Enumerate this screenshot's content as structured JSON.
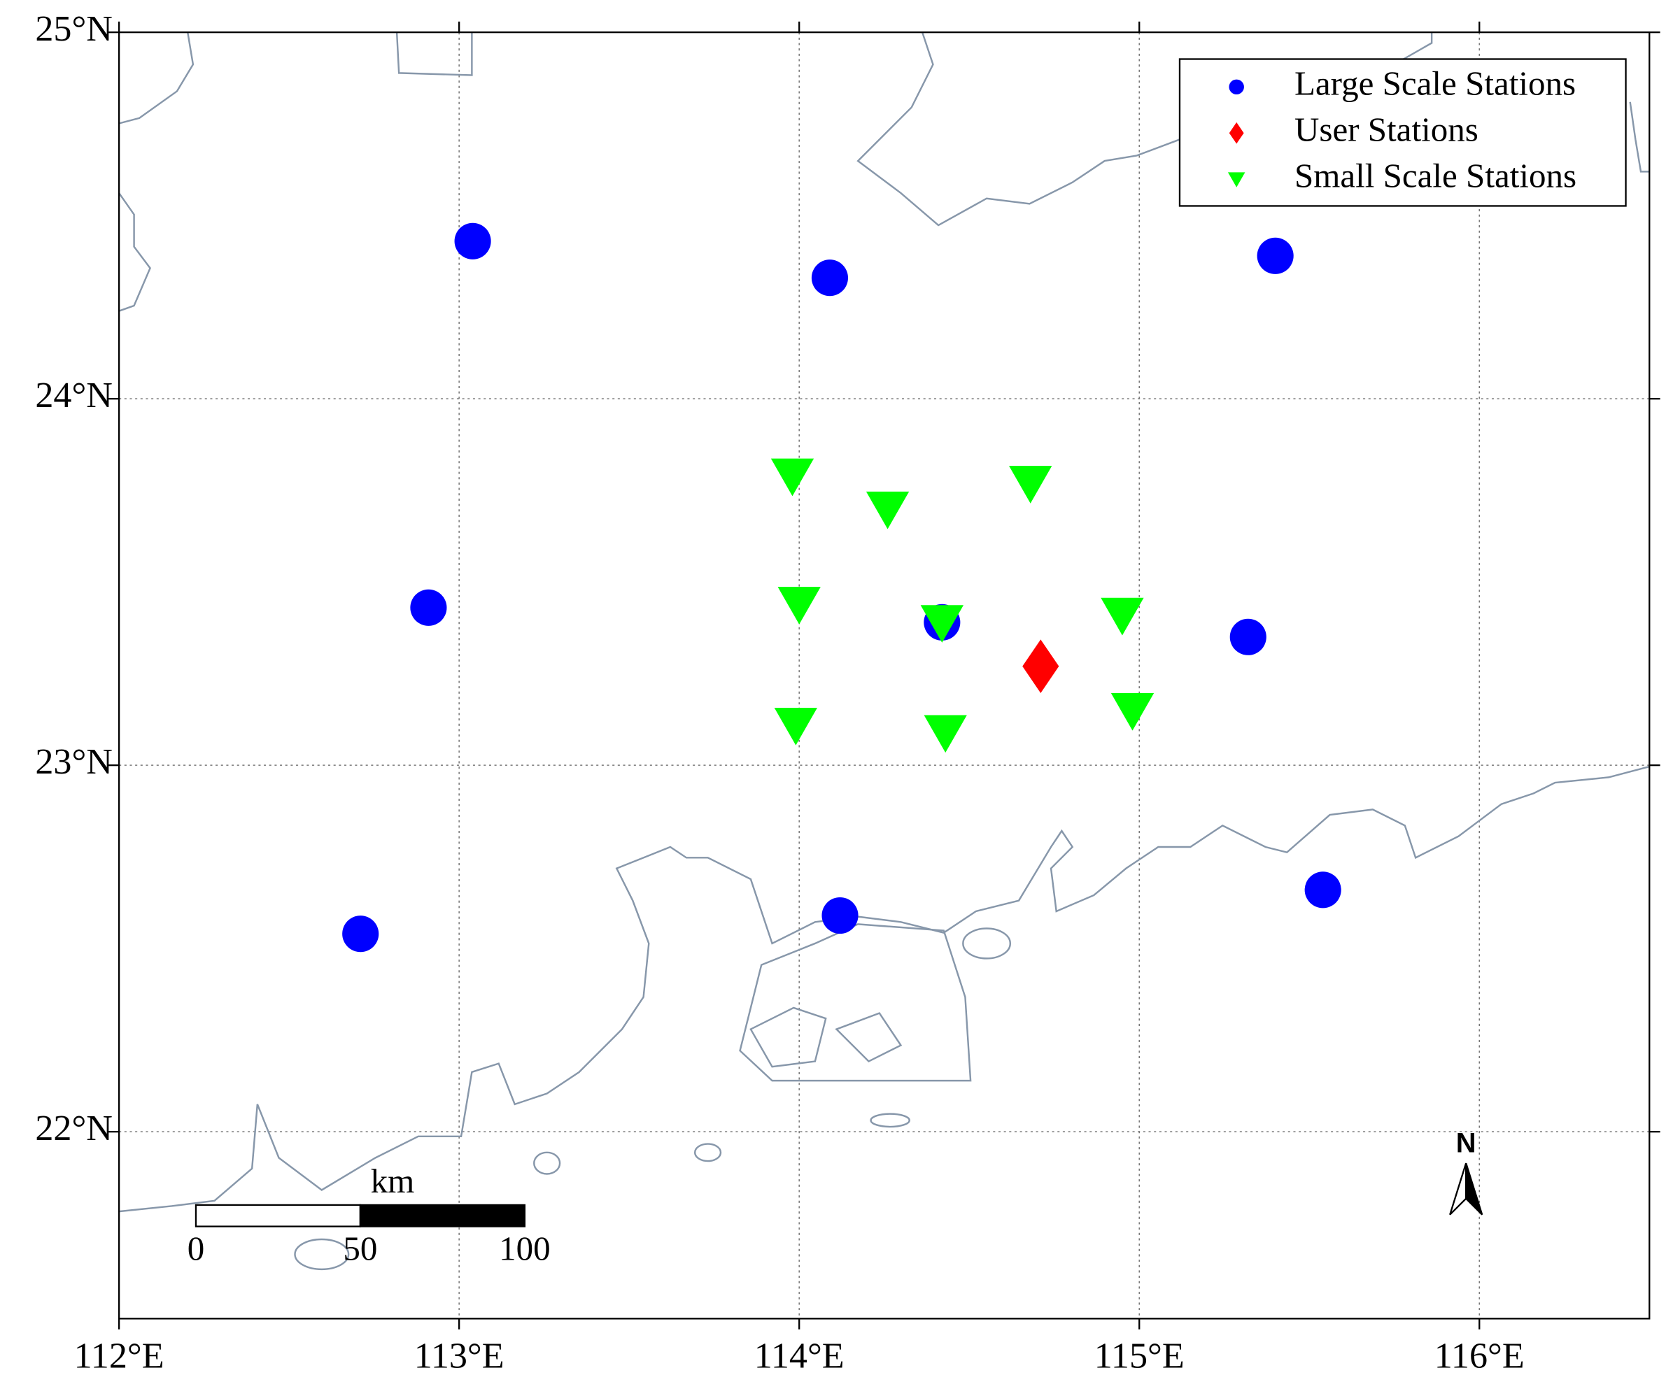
{
  "chart_data": {
    "type": "map",
    "xlim": [
      112,
      116.5
    ],
    "ylim": [
      21.49,
      25
    ],
    "xticks": [
      {
        "value": 112,
        "label": "112°E"
      },
      {
        "value": 113,
        "label": "113°E"
      },
      {
        "value": 114,
        "label": "114°E"
      },
      {
        "value": 115,
        "label": "115°E"
      },
      {
        "value": 116,
        "label": "116°E"
      }
    ],
    "yticks": [
      {
        "value": 22,
        "label": "22°N"
      },
      {
        "value": 23,
        "label": "23°N"
      },
      {
        "value": 24,
        "label": "24°N"
      },
      {
        "value": 25,
        "label": "25°N"
      }
    ],
    "grid": true,
    "legend": "upper right",
    "series": [
      {
        "name": "Large Scale Stations",
        "color": "#0000ff",
        "marker": "circle",
        "x": [
          113.04,
          114.09,
          115.4,
          112.91,
          114.42,
          115.32,
          112.71,
          114.12,
          115.54
        ],
        "y": [
          24.43,
          24.33,
          24.39,
          23.43,
          23.39,
          23.35,
          22.54,
          22.59,
          22.66
        ]
      },
      {
        "name": "User Stations",
        "color": "#ff0000",
        "marker": "diamond",
        "x": [
          114.71
        ],
        "y": [
          23.27
        ]
      },
      {
        "name": "Small Scale Stations",
        "color": "#00ff00",
        "marker": "triangle-down",
        "x": [
          113.98,
          114.26,
          114.68,
          114.0,
          114.42,
          114.95,
          113.99,
          114.43,
          114.98
        ],
        "y": [
          23.79,
          23.7,
          23.77,
          23.44,
          23.39,
          23.41,
          23.11,
          23.09,
          23.15
        ]
      }
    ],
    "scale_bar": {
      "unit": "km",
      "ticks": [
        0,
        50,
        100
      ]
    },
    "north_arrow": "N"
  }
}
